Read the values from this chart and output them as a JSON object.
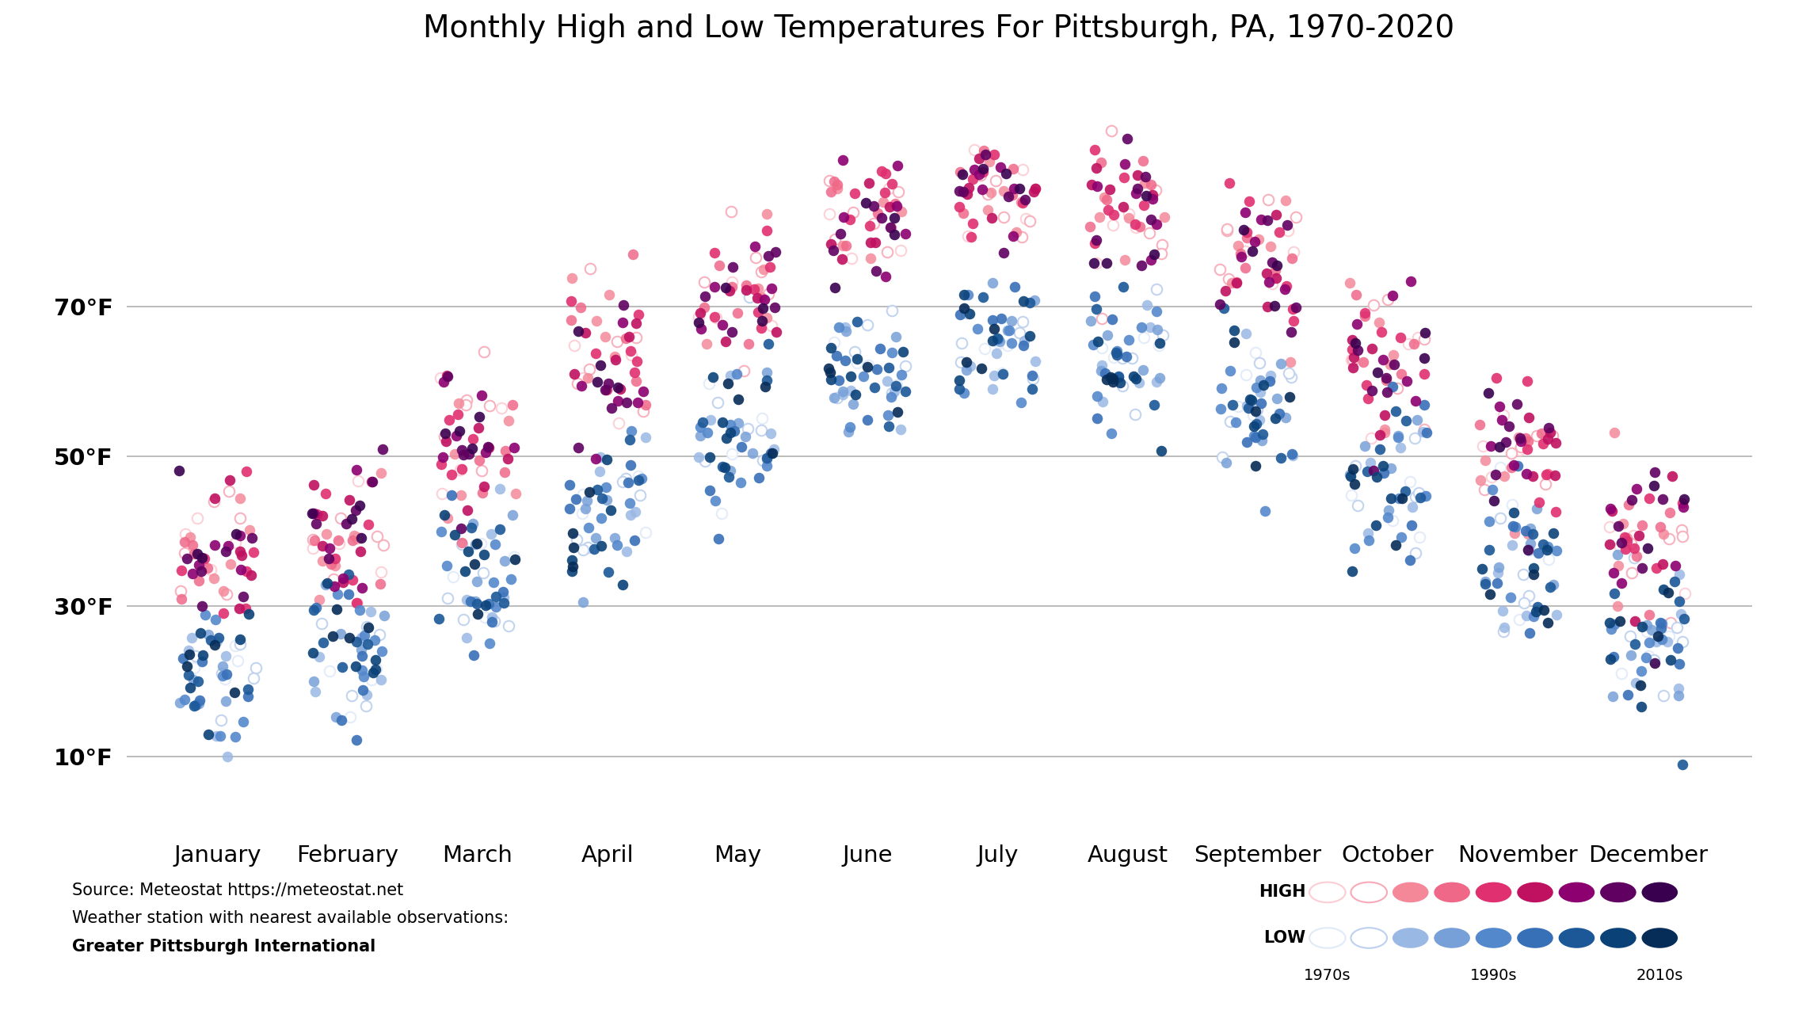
{
  "title": "Monthly High and Low Temperatures For Pittsburgh, PA, 1970-2020",
  "months": [
    "January",
    "February",
    "March",
    "April",
    "May",
    "June",
    "July",
    "August",
    "September",
    "October",
    "November",
    "December"
  ],
  "month_positions": [
    1,
    2,
    3,
    4,
    5,
    6,
    7,
    8,
    9,
    10,
    11,
    12
  ],
  "yticks": [
    10,
    30,
    50,
    70
  ],
  "ylabels": [
    "10°F",
    "30°F",
    "50°F",
    "70°F"
  ],
  "ylim": [
    0,
    100
  ],
  "xlim": [
    0.3,
    12.8
  ],
  "background_color": "#ffffff",
  "grid_color": "#b0b0b0",
  "high_colors": [
    "#fccdd4",
    "#f8aab8",
    "#f48899",
    "#ef6888",
    "#e03070",
    "#c01060",
    "#8c0070",
    "#600060",
    "#3a0050"
  ],
  "low_colors": [
    "#e0eaf8",
    "#bdd0ee",
    "#9ab8e4",
    "#77a0d8",
    "#5488cc",
    "#3870b8",
    "#1c5898",
    "#0a4278",
    "#062c58"
  ],
  "monthly_high_mean": [
    36,
    39,
    51,
    63,
    72,
    81,
    85,
    83,
    76,
    63,
    51,
    39
  ],
  "monthly_low_mean": [
    21,
    23,
    32,
    42,
    52,
    61,
    66,
    64,
    57,
    45,
    35,
    25
  ],
  "high_std": [
    5.0,
    5.5,
    6.0,
    5.5,
    5.0,
    4.5,
    4.0,
    4.5,
    5.0,
    5.5,
    5.5,
    5.5
  ],
  "low_std": [
    5.0,
    5.5,
    6.0,
    5.5,
    5.0,
    4.5,
    4.0,
    4.5,
    5.0,
    5.5,
    5.5,
    5.5
  ],
  "jitter_scale": 0.3,
  "marker_size": 95,
  "source_line1": "Source: Meteostat https://meteostat.net",
  "source_line2": "Weather station with nearest available observations:",
  "source_line3": "Greater Pittsburgh International",
  "legend_years": [
    "1970s",
    "1990s",
    "2010s"
  ]
}
